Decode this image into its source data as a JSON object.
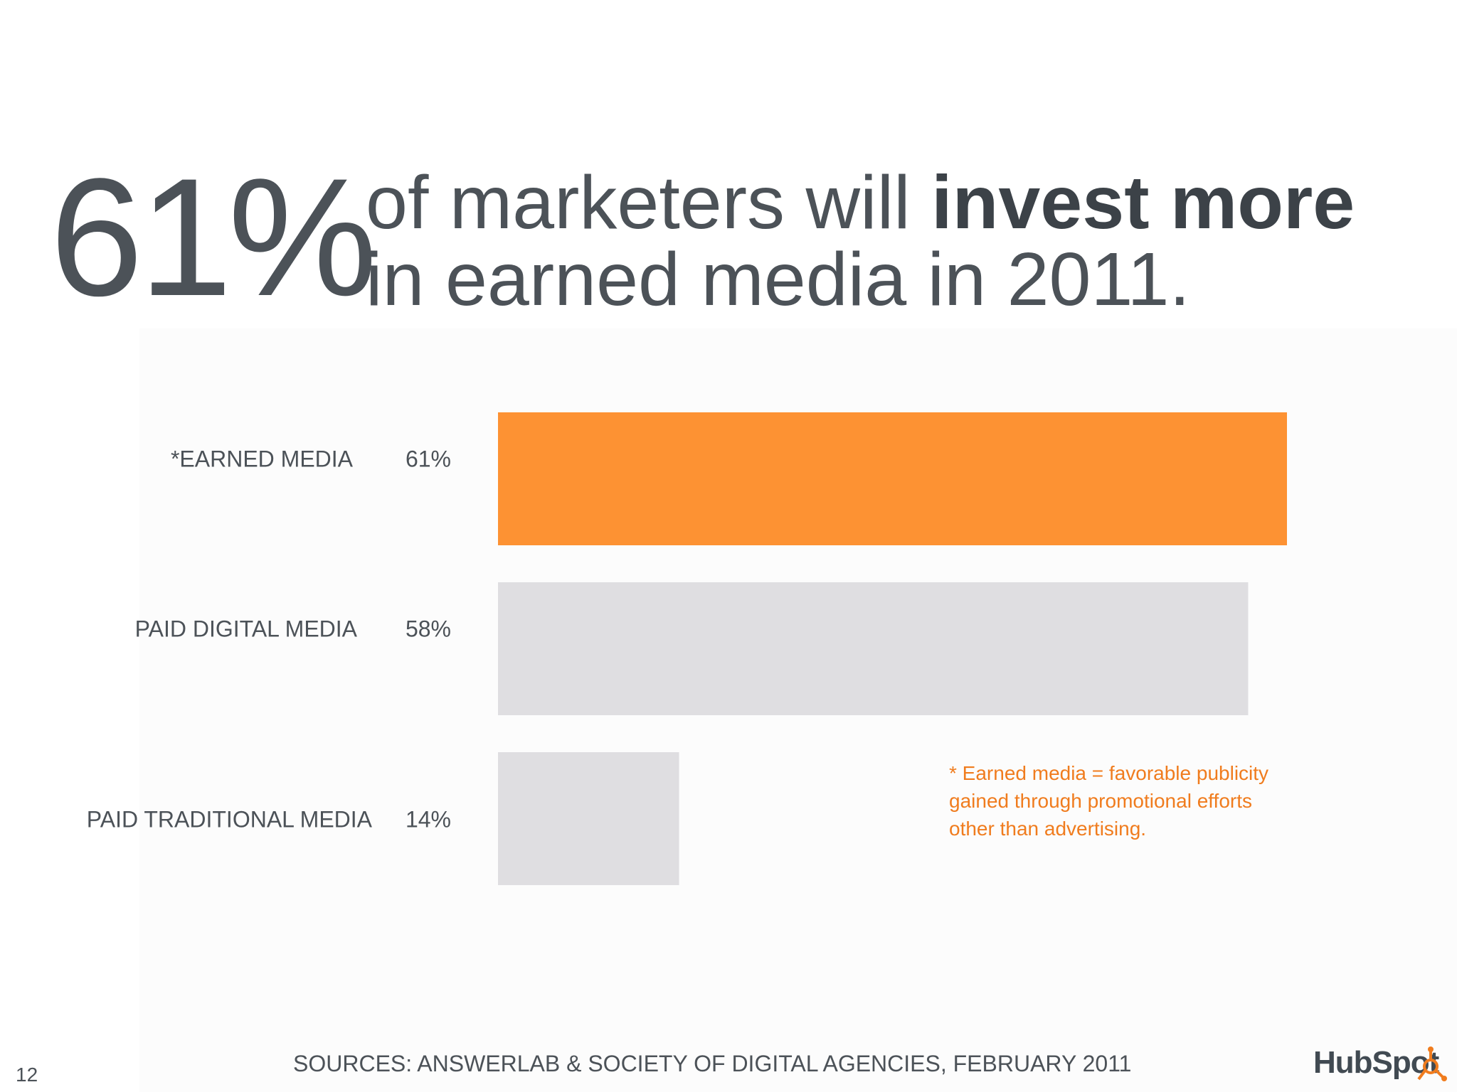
{
  "headline": {
    "stat": "61%",
    "line1_regular": "of marketers will ",
    "line1_bold": "invest more",
    "line2": "in earned media in 2011."
  },
  "chart_data": {
    "type": "bar",
    "orientation": "horizontal",
    "categories": [
      "*EARNED MEDIA",
      "PAID DIGITAL MEDIA",
      "PAID TRADITIONAL MEDIA"
    ],
    "values": [
      61,
      58,
      14
    ],
    "value_labels": [
      "61%",
      "58%",
      "14%"
    ],
    "bar_colors": [
      "#fd9233",
      "#dfdee1",
      "#dfdee1"
    ],
    "xlim": [
      0,
      61
    ],
    "grid": false
  },
  "footnote": {
    "line1": "* Earned media = favorable publicity",
    "line2": "gained through promotional efforts",
    "line3": "other than advertising."
  },
  "footer": {
    "slide_number": "12",
    "sources": "SOURCES: ANSWERLAB & SOCIETY OF DIGITAL AGENCIES, FEBRUARY 2011",
    "logo_text": "HubSpot"
  },
  "colors": {
    "accent": "#fd9233",
    "footnote": "#f07c1e",
    "text": "#4c5258",
    "muted_bar": "#dfdee1"
  }
}
